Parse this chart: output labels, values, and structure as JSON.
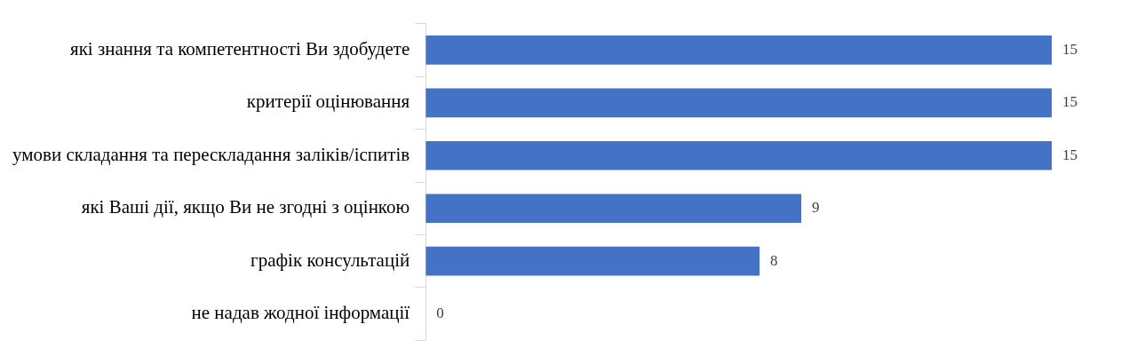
{
  "chart_data": {
    "type": "bar",
    "orientation": "horizontal",
    "categories": [
      "які знання та компетентності Ви здобудете",
      "критерії оцінювання",
      "умови складання та перескладання заліків/іспитів",
      "які Ваші дії, якщо Ви не згодні з оцінкою",
      "графік консультацій",
      "не надав жодної інформації"
    ],
    "values": [
      15,
      15,
      15,
      9,
      8,
      0
    ],
    "color": "#4472c4",
    "data_labels": true
  }
}
